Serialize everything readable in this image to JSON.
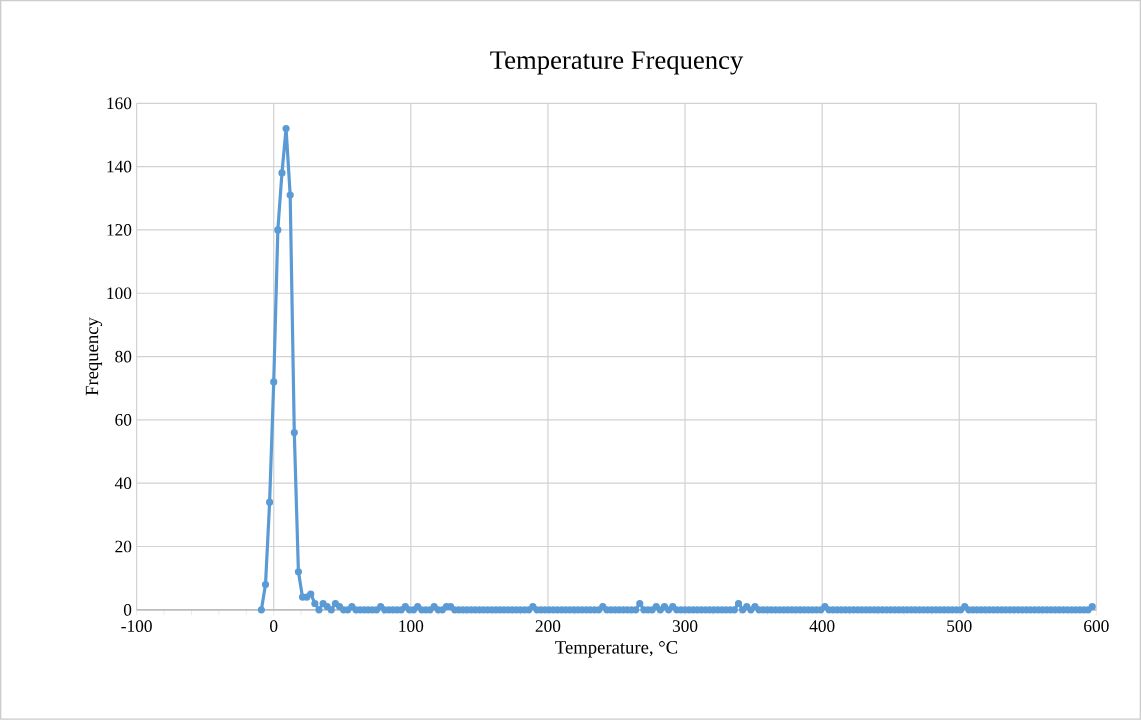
{
  "chart_data": {
    "type": "line",
    "title": "Temperature Frequency",
    "xlabel": "Temperature, °C",
    "ylabel": "Frequency",
    "x": [
      -9,
      -6,
      -3,
      0,
      3,
      6,
      9,
      12,
      15,
      18,
      21,
      24,
      27,
      30,
      33,
      36,
      39,
      42,
      45,
      48,
      51,
      54,
      57,
      60,
      63,
      66,
      69,
      72,
      75,
      78,
      81,
      84,
      87,
      90,
      93,
      96,
      99,
      102,
      105,
      108,
      111,
      114,
      117,
      120,
      123,
      126,
      129,
      132,
      135,
      138,
      141,
      144,
      147,
      150,
      153,
      156,
      159,
      162,
      165,
      168,
      171,
      174,
      177,
      180,
      183,
      186,
      189,
      192,
      195,
      198,
      201,
      204,
      207,
      210,
      213,
      216,
      219,
      222,
      225,
      228,
      231,
      234,
      237,
      240,
      243,
      246,
      249,
      252,
      255,
      258,
      261,
      264,
      267,
      270,
      273,
      276,
      279,
      282,
      285,
      288,
      291,
      294,
      297,
      300,
      303,
      306,
      309,
      312,
      315,
      318,
      321,
      324,
      327,
      330,
      333,
      336,
      339,
      342,
      345,
      348,
      351,
      354,
      357,
      360,
      363,
      366,
      369,
      372,
      375,
      378,
      381,
      384,
      387,
      390,
      393,
      396,
      399,
      402,
      405,
      408,
      411,
      414,
      417,
      420,
      423,
      426,
      429,
      432,
      435,
      438,
      441,
      444,
      447,
      450,
      453,
      456,
      459,
      462,
      465,
      468,
      471,
      474,
      477,
      480,
      483,
      486,
      489,
      492,
      495,
      498,
      501,
      504,
      507,
      510,
      513,
      516,
      519,
      522,
      525,
      528,
      531,
      534,
      537,
      540,
      543,
      546,
      549,
      552,
      555,
      558,
      561,
      564,
      567,
      570,
      573,
      576,
      579,
      582,
      585,
      588,
      591,
      594,
      597
    ],
    "values": [
      0,
      8,
      34,
      72,
      120,
      138,
      152,
      131,
      56,
      12,
      4,
      4,
      5,
      2,
      0,
      2,
      1,
      0,
      2,
      1,
      0,
      0,
      1,
      0,
      0,
      0,
      0,
      0,
      0,
      1,
      0,
      0,
      0,
      0,
      0,
      1,
      0,
      0,
      1,
      0,
      0,
      0,
      1,
      0,
      0,
      1,
      1,
      0,
      0,
      0,
      0,
      0,
      0,
      0,
      0,
      0,
      0,
      0,
      0,
      0,
      0,
      0,
      0,
      0,
      0,
      0,
      1,
      0,
      0,
      0,
      0,
      0,
      0,
      0,
      0,
      0,
      0,
      0,
      0,
      0,
      0,
      0,
      0,
      1,
      0,
      0,
      0,
      0,
      0,
      0,
      0,
      0,
      2,
      0,
      0,
      0,
      1,
      0,
      1,
      0,
      1,
      0,
      0,
      0,
      0,
      0,
      0,
      0,
      0,
      0,
      0,
      0,
      0,
      0,
      0,
      0,
      2,
      0,
      1,
      0,
      1,
      0,
      0,
      0,
      0,
      0,
      0,
      0,
      0,
      0,
      0,
      0,
      0,
      0,
      0,
      0,
      0,
      1,
      0,
      0,
      0,
      0,
      0,
      0,
      0,
      0,
      0,
      0,
      0,
      0,
      0,
      0,
      0,
      0,
      0,
      0,
      0,
      0,
      0,
      0,
      0,
      0,
      0,
      0,
      0,
      0,
      0,
      0,
      0,
      0,
      0,
      1,
      0,
      0,
      0,
      0,
      0,
      0,
      0,
      0,
      0,
      0,
      0,
      0,
      0,
      0,
      0,
      0,
      0,
      0,
      0,
      0,
      0,
      0,
      0,
      0,
      0,
      0,
      0,
      0,
      0,
      0,
      1
    ],
    "color": "#5b9bd5",
    "marker": "circle",
    "line_style": "solid",
    "grid": true,
    "xlim": [
      -100,
      600
    ],
    "xticks": [
      -100,
      0,
      100,
      200,
      300,
      400,
      500,
      600
    ],
    "ylim": [
      0,
      160
    ],
    "yticks": [
      0,
      20,
      40,
      60,
      80,
      100,
      120,
      140,
      160
    ]
  }
}
